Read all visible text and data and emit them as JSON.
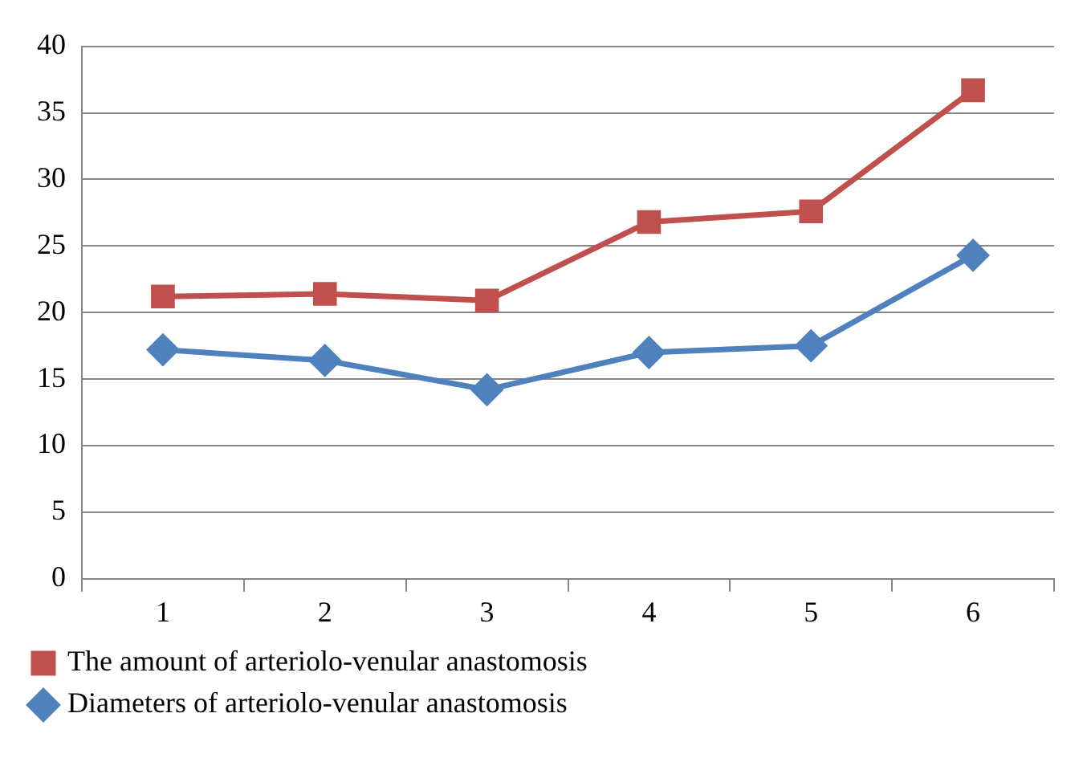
{
  "chart_data": {
    "type": "line",
    "categories": [
      "1",
      "2",
      "3",
      "4",
      "5",
      "6"
    ],
    "series": [
      {
        "name": "The amount of arteriolo-venular anastomosis",
        "color": "#c0504d",
        "marker": "square",
        "values": [
          21.2,
          21.4,
          20.9,
          26.8,
          27.6,
          36.7
        ]
      },
      {
        "name": "Diameters of arteriolo-venular anastomosis",
        "color": "#4f81bd",
        "marker": "diamond",
        "values": [
          17.2,
          16.4,
          14.2,
          17.0,
          17.5,
          24.3
        ]
      }
    ],
    "ylim": [
      0,
      40
    ],
    "yticks": [
      0,
      5,
      10,
      15,
      20,
      25,
      30,
      35,
      40
    ],
    "grid": "y",
    "legend": "bottom"
  }
}
